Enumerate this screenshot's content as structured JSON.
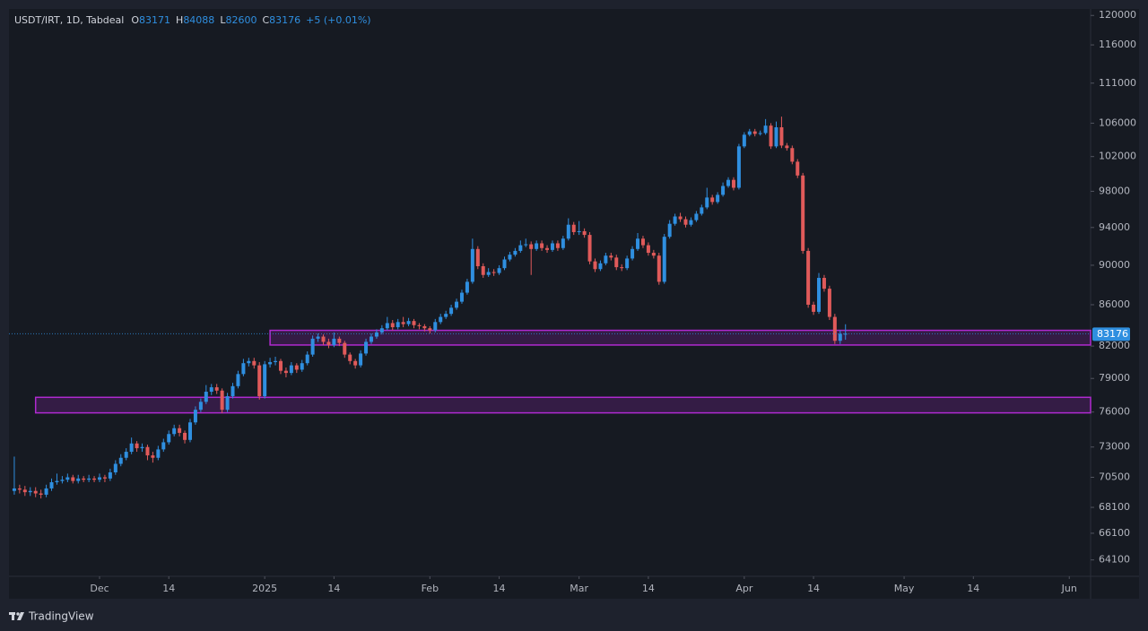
{
  "chart_data": {
    "type": "candlestick",
    "title": "USDT/IRT, 1D, Tabdeal",
    "ohlc_prefixes": [
      "O",
      "H",
      "L",
      "C"
    ],
    "change_label": "+5 (+0.01%)",
    "log": true,
    "grid": false,
    "up_color": "#2f8fe0",
    "down_color": "#e05a5a",
    "zone_color": "#b02ad0",
    "ylim": [
      62900,
      120900
    ],
    "yticks": [
      120000,
      116000,
      111000,
      106000,
      102000,
      98000,
      94000,
      90000,
      86000,
      82000,
      79000,
      76000,
      73000,
      70500,
      68100,
      66100,
      64100
    ],
    "xlim": [
      "2024-11-14",
      "2025-06-05"
    ],
    "xticks": [
      {
        "value": "2024-12-01",
        "label": "Dec"
      },
      {
        "value": "2024-12-14",
        "label": "14"
      },
      {
        "value": "2025-01-01",
        "label": "2025"
      },
      {
        "value": "2025-01-14",
        "label": "14"
      },
      {
        "value": "2025-02-01",
        "label": "Feb"
      },
      {
        "value": "2025-02-14",
        "label": "14"
      },
      {
        "value": "2025-03-01",
        "label": "Mar"
      },
      {
        "value": "2025-03-14",
        "label": "14"
      },
      {
        "value": "2025-04-01",
        "label": "Apr"
      },
      {
        "value": "2025-04-14",
        "label": "14"
      },
      {
        "value": "2025-05-01",
        "label": "May"
      },
      {
        "value": "2025-05-14",
        "label": "14"
      },
      {
        "value": "2025-06-01",
        "label": "Jun"
      }
    ],
    "zones": [
      {
        "x0": "2025-01-02",
        "y0": 82100,
        "y1": 83500
      },
      {
        "x0": "2024-11-19",
        "y0": 75930,
        "y1": 77300
      }
    ],
    "x": [
      "2024-11-15",
      "2024-11-16",
      "2024-11-17",
      "2024-11-18",
      "2024-11-19",
      "2024-11-20",
      "2024-11-21",
      "2024-11-22",
      "2024-11-23",
      "2024-11-24",
      "2024-11-25",
      "2024-11-26",
      "2024-11-27",
      "2024-11-28",
      "2024-11-29",
      "2024-11-30",
      "2024-12-01",
      "2024-12-02",
      "2024-12-03",
      "2024-12-04",
      "2024-12-05",
      "2024-12-06",
      "2024-12-07",
      "2024-12-08",
      "2024-12-09",
      "2024-12-10",
      "2024-12-11",
      "2024-12-12",
      "2024-12-13",
      "2024-12-14",
      "2024-12-15",
      "2024-12-16",
      "2024-12-17",
      "2024-12-18",
      "2024-12-19",
      "2024-12-20",
      "2024-12-21",
      "2024-12-22",
      "2024-12-23",
      "2024-12-24",
      "2024-12-25",
      "2024-12-26",
      "2024-12-27",
      "2024-12-28",
      "2024-12-29",
      "2024-12-30",
      "2024-12-31",
      "2025-01-01",
      "2025-01-02",
      "2025-01-03",
      "2025-01-04",
      "2025-01-05",
      "2025-01-06",
      "2025-01-07",
      "2025-01-08",
      "2025-01-09",
      "2025-01-10",
      "2025-01-11",
      "2025-01-12",
      "2025-01-13",
      "2025-01-14",
      "2025-01-15",
      "2025-01-16",
      "2025-01-17",
      "2025-01-18",
      "2025-01-19",
      "2025-01-20",
      "2025-01-21",
      "2025-01-22",
      "2025-01-23",
      "2025-01-24",
      "2025-01-25",
      "2025-01-26",
      "2025-01-27",
      "2025-01-28",
      "2025-01-29",
      "2025-01-30",
      "2025-01-31",
      "2025-02-01",
      "2025-02-02",
      "2025-02-03",
      "2025-02-04",
      "2025-02-05",
      "2025-02-06",
      "2025-02-07",
      "2025-02-08",
      "2025-02-09",
      "2025-02-10",
      "2025-02-11",
      "2025-02-12",
      "2025-02-13",
      "2025-02-14",
      "2025-02-15",
      "2025-02-16",
      "2025-02-17",
      "2025-02-18",
      "2025-02-19",
      "2025-02-20",
      "2025-02-21",
      "2025-02-22",
      "2025-02-23",
      "2025-02-24",
      "2025-02-25",
      "2025-02-26",
      "2025-02-27",
      "2025-02-28",
      "2025-03-01",
      "2025-03-02",
      "2025-03-03",
      "2025-03-04",
      "2025-03-05",
      "2025-03-06",
      "2025-03-07",
      "2025-03-08",
      "2025-03-09",
      "2025-03-10",
      "2025-03-11",
      "2025-03-12",
      "2025-03-13",
      "2025-03-14",
      "2025-03-15",
      "2025-03-16",
      "2025-03-17",
      "2025-03-18",
      "2025-03-19",
      "2025-03-20",
      "2025-03-21",
      "2025-03-22",
      "2025-03-23",
      "2025-03-24",
      "2025-03-25",
      "2025-03-26",
      "2025-03-27",
      "2025-03-28",
      "2025-03-29",
      "2025-03-30",
      "2025-03-31",
      "2025-04-01",
      "2025-04-02",
      "2025-04-03",
      "2025-04-04",
      "2025-04-05",
      "2025-04-06",
      "2025-04-07",
      "2025-04-08",
      "2025-04-09",
      "2025-04-10",
      "2025-04-11",
      "2025-04-12",
      "2025-04-13",
      "2025-04-14",
      "2025-04-15",
      "2025-04-16",
      "2025-04-17",
      "2025-04-18",
      "2025-04-19",
      "2025-04-20"
    ],
    "open": [
      69400,
      69600,
      69500,
      69300,
      69400,
      69200,
      69100,
      69600,
      70100,
      70200,
      70300,
      70500,
      70200,
      70400,
      70300,
      70400,
      70300,
      70500,
      70400,
      70900,
      71600,
      72100,
      72600,
      73300,
      72900,
      73000,
      72300,
      72100,
      72800,
      73400,
      74100,
      74600,
      74200,
      73600,
      75100,
      76200,
      76900,
      77800,
      78200,
      77900,
      76200,
      77400,
      78300,
      79400,
      80400,
      80600,
      80200,
      77400,
      80300,
      80500,
      80600,
      79700,
      79500,
      80200,
      79800,
      80400,
      81200,
      82700,
      82900,
      82400,
      82100,
      82700,
      82300,
      81200,
      80600,
      80200,
      81300,
      82400,
      82900,
      83300,
      83700,
      84200,
      83800,
      84300,
      84100,
      84400,
      84000,
      83900,
      83700,
      83500,
      84300,
      84800,
      85100,
      85700,
      86300,
      87200,
      88300,
      91700,
      89900,
      89000,
      89300,
      89200,
      89700,
      90600,
      91100,
      91500,
      92100,
      92200,
      91700,
      92300,
      91800,
      91600,
      92300,
      91800,
      92800,
      94300,
      93500,
      93600,
      93200,
      90400,
      89600,
      90200,
      91000,
      90800,
      89800,
      89700,
      90700,
      91700,
      92800,
      92100,
      91300,
      91000,
      88300,
      93000,
      94400,
      95200,
      94900,
      94300,
      94800,
      95500,
      96200,
      97300,
      96800,
      97600,
      98600,
      99300,
      98400,
      103200,
      104600,
      105000,
      104700,
      104800,
      105700,
      103200,
      105500,
      103300,
      103000,
      101400,
      99800,
      91500,
      86000,
      85300,
      88700,
      87600,
      84800,
      82500,
      83171
    ],
    "high": [
      72200,
      69900,
      69800,
      69700,
      69700,
      69500,
      69900,
      70400,
      70800,
      70600,
      70800,
      70700,
      70700,
      70600,
      70700,
      70600,
      70800,
      70700,
      71200,
      71900,
      72400,
      72900,
      73800,
      73500,
      73300,
      73200,
      72600,
      73100,
      73700,
      74400,
      74900,
      74900,
      74400,
      75400,
      76500,
      77200,
      78400,
      78500,
      78500,
      78100,
      77700,
      78600,
      79700,
      80800,
      80900,
      80900,
      80500,
      80600,
      80900,
      81000,
      80800,
      80000,
      80500,
      80400,
      80700,
      81500,
      83000,
      83200,
      83100,
      82700,
      83300,
      82900,
      82500,
      81400,
      80800,
      81600,
      82700,
      83200,
      83600,
      84000,
      84800,
      84500,
      84600,
      84800,
      84700,
      84600,
      84200,
      84100,
      83900,
      84600,
      85100,
      85400,
      86000,
      86600,
      87500,
      88600,
      92800,
      92000,
      90200,
      89700,
      89600,
      90000,
      90900,
      91400,
      91800,
      92600,
      92800,
      92500,
      92600,
      92600,
      92100,
      92600,
      92600,
      93100,
      95000,
      94600,
      94700,
      93900,
      93500,
      90700,
      90500,
      91300,
      91300,
      91100,
      90100,
      91000,
      92000,
      93400,
      93100,
      92400,
      91600,
      91300,
      93300,
      94800,
      95500,
      95600,
      95200,
      95100,
      95800,
      96500,
      98400,
      97600,
      97900,
      99000,
      99600,
      99600,
      103500,
      104900,
      105300,
      105300,
      105100,
      106500,
      106000,
      106200,
      106800,
      103600,
      103300,
      101700,
      100100,
      91800,
      86300,
      89200,
      89000,
      87900,
      85100,
      83500,
      84088
    ],
    "low": [
      69100,
      69200,
      69000,
      69000,
      68900,
      68800,
      68900,
      69400,
      69900,
      70000,
      70100,
      70000,
      70000,
      70100,
      70100,
      70100,
      70100,
      70100,
      70200,
      70700,
      71400,
      71900,
      72400,
      72600,
      72600,
      71900,
      71700,
      71900,
      72600,
      73200,
      73900,
      73900,
      73300,
      73400,
      74900,
      76000,
      76700,
      77500,
      77600,
      75900,
      76000,
      77200,
      78100,
      79200,
      80100,
      79900,
      77100,
      77200,
      80000,
      80200,
      79400,
      79100,
      79300,
      79500,
      79600,
      80200,
      81000,
      82400,
      82100,
      81800,
      81900,
      82000,
      80900,
      80300,
      79900,
      80000,
      81100,
      82200,
      82700,
      83100,
      83500,
      83500,
      83600,
      83800,
      83900,
      83700,
      83600,
      83400,
      83200,
      83300,
      84100,
      84600,
      84900,
      85500,
      86100,
      87000,
      88100,
      89600,
      88700,
      88800,
      88900,
      89000,
      89500,
      90400,
      90900,
      91300,
      91900,
      89000,
      91500,
      91500,
      91300,
      91400,
      91500,
      91600,
      92600,
      93200,
      93200,
      92900,
      90100,
      89300,
      89400,
      90000,
      90500,
      89500,
      89400,
      89500,
      90500,
      91500,
      91800,
      91000,
      90700,
      88000,
      88100,
      92800,
      94200,
      94600,
      94000,
      94100,
      94600,
      95300,
      96000,
      96500,
      96600,
      97400,
      98400,
      98100,
      98200,
      103000,
      104400,
      104400,
      104500,
      104600,
      102900,
      103000,
      103000,
      102700,
      101100,
      99500,
      91200,
      85700,
      85000,
      85100,
      87300,
      84500,
      82200,
      82200,
      82600
    ],
    "close": [
      69600,
      69500,
      69300,
      69400,
      69200,
      69100,
      69600,
      70100,
      70200,
      70300,
      70500,
      70200,
      70400,
      70300,
      70400,
      70300,
      70500,
      70400,
      70900,
      71600,
      72100,
      72600,
      73300,
      72900,
      73000,
      72300,
      72100,
      72800,
      73400,
      74100,
      74600,
      74200,
      73600,
      75100,
      76200,
      76900,
      77800,
      78200,
      77900,
      76200,
      77400,
      78300,
      79400,
      80400,
      80600,
      80200,
      77400,
      80300,
      80500,
      80600,
      79700,
      79500,
      80200,
      79800,
      80400,
      81200,
      82700,
      82900,
      82400,
      82100,
      82700,
      82300,
      81200,
      80600,
      80200,
      81300,
      82400,
      82900,
      83300,
      83700,
      84200,
      83800,
      84300,
      84100,
      84400,
      84000,
      83900,
      83700,
      83500,
      84300,
      84800,
      85100,
      85700,
      86300,
      87200,
      88300,
      91700,
      89900,
      89000,
      89300,
      89200,
      89700,
      90600,
      91100,
      91500,
      92100,
      92200,
      91700,
      92300,
      91800,
      91600,
      92300,
      91800,
      92800,
      94300,
      93500,
      93600,
      93200,
      90400,
      89600,
      90200,
      91000,
      90800,
      89800,
      89700,
      90700,
      91700,
      92800,
      92100,
      91300,
      91000,
      88300,
      93000,
      94400,
      95200,
      94900,
      94300,
      94800,
      95500,
      96200,
      97300,
      96800,
      97600,
      98600,
      99300,
      98400,
      103200,
      104600,
      105000,
      104700,
      104800,
      105700,
      103200,
      105500,
      103300,
      103000,
      101400,
      99800,
      91500,
      86000,
      85300,
      88700,
      87600,
      84800,
      82500,
      83171,
      83176
    ]
  },
  "footer": "TradingView"
}
